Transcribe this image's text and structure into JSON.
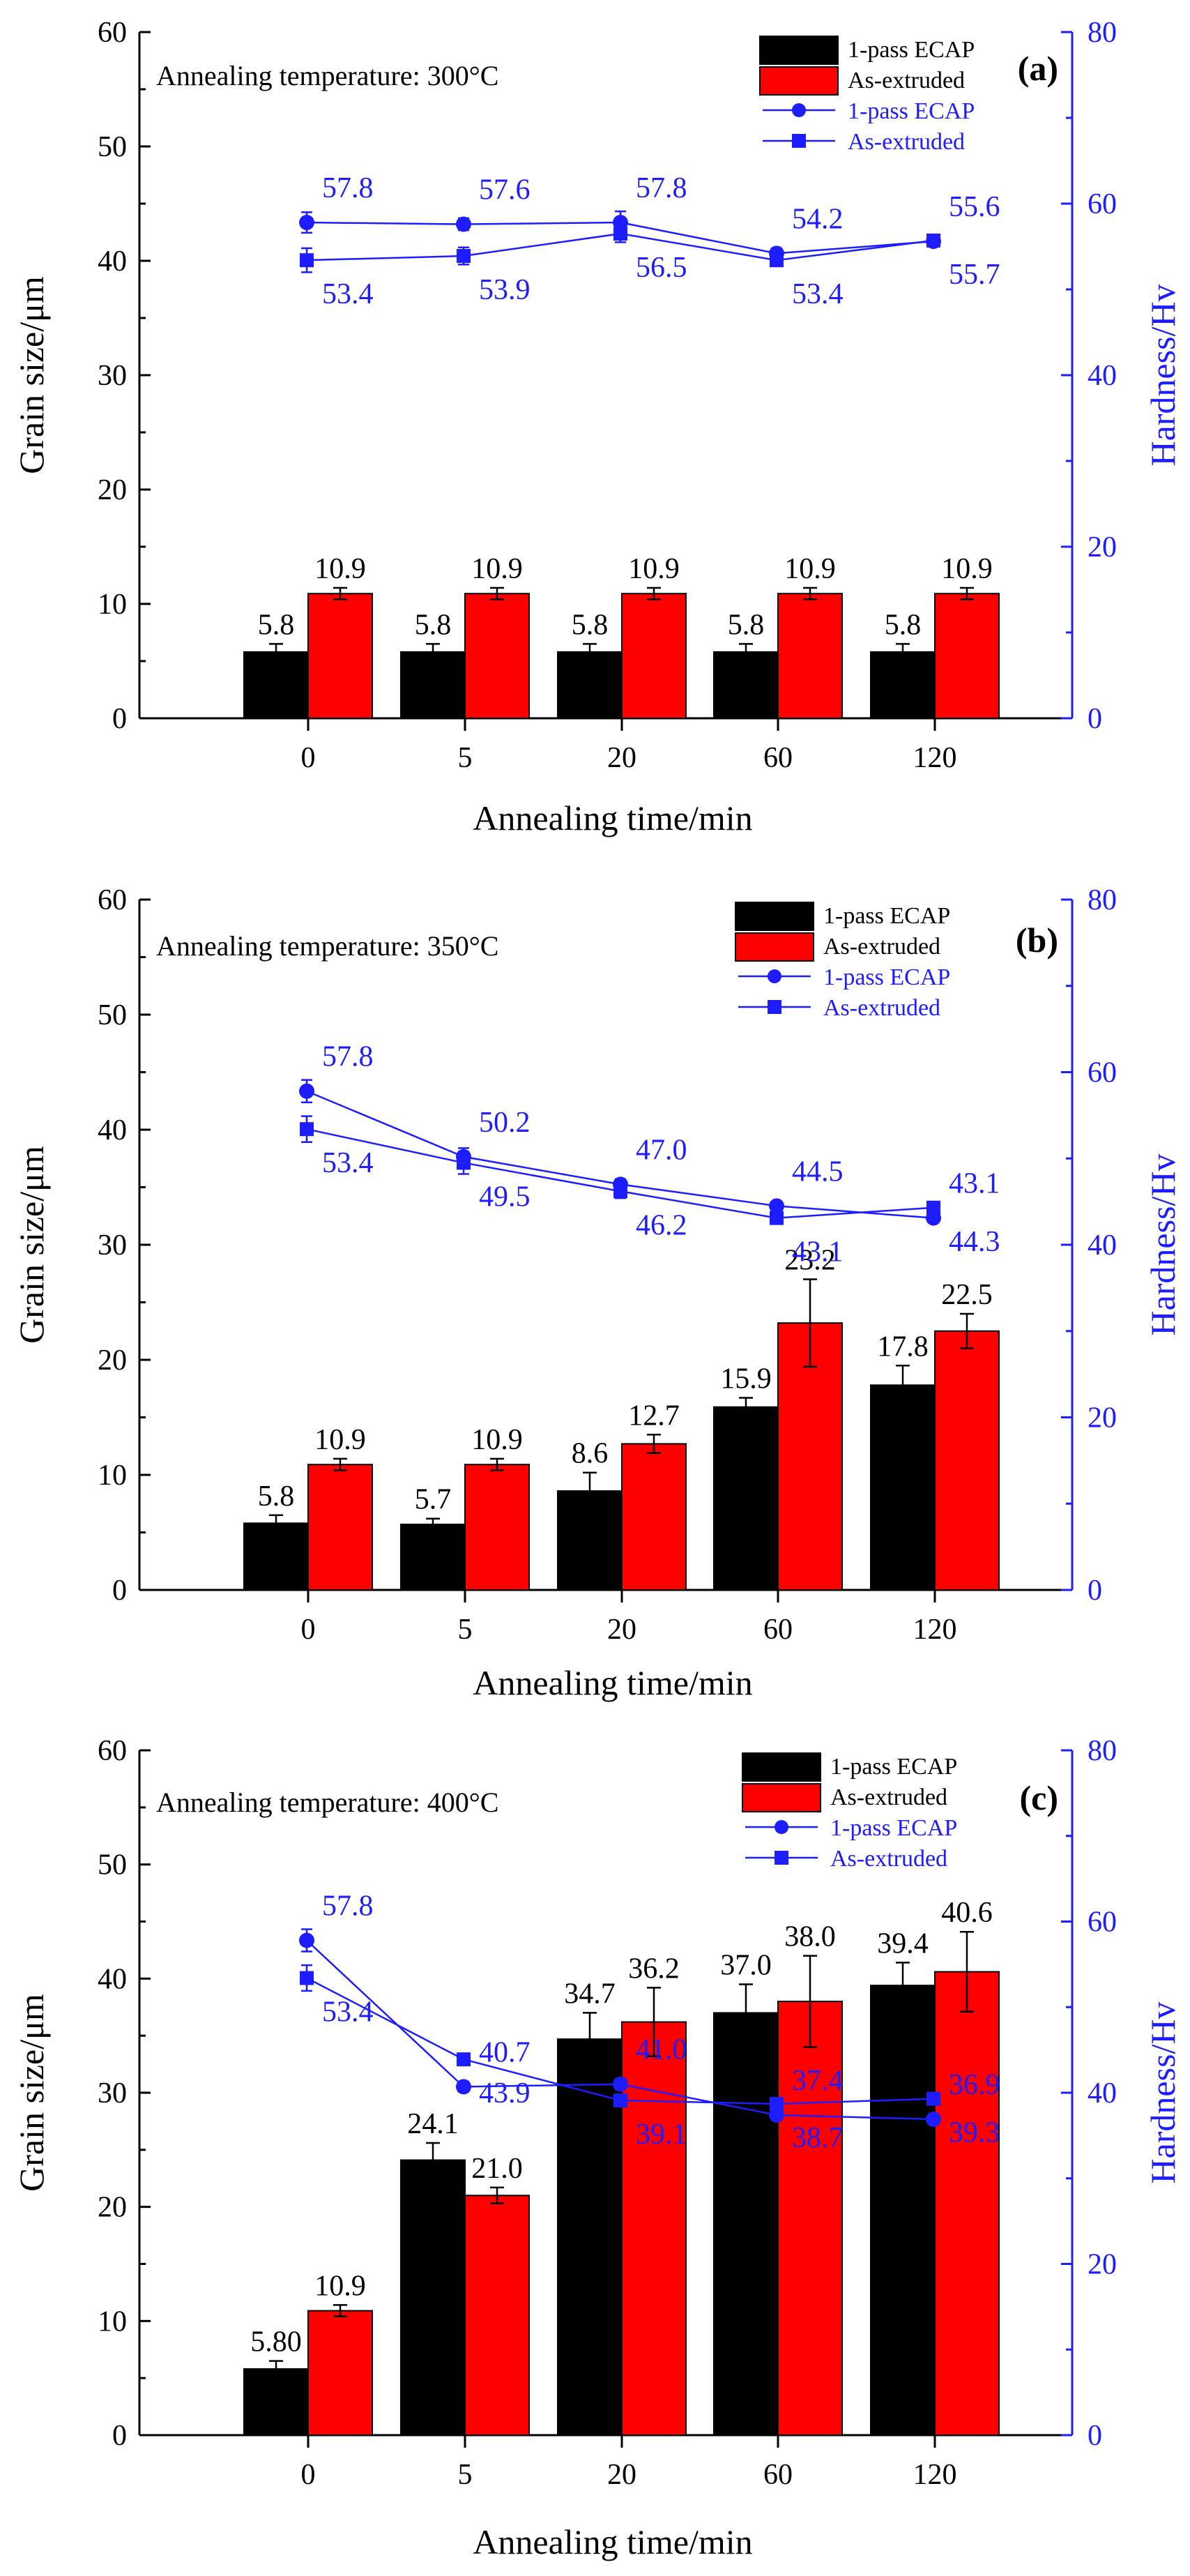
{
  "chart_data": [
    {
      "type": "bar",
      "panel": "(a)",
      "annotation": "Annealing temperature: 300°C",
      "categories": [
        "0",
        "5",
        "20",
        "60",
        "120"
      ],
      "xlabel": "Annealing time/min",
      "ylabel": "Grain size/μm",
      "y2label": "Hardness/Hv",
      "ylim": [
        0,
        60
      ],
      "y2lim": [
        0,
        80
      ],
      "yticks": [
        0,
        10,
        20,
        30,
        40,
        50,
        60
      ],
      "y2ticks": [
        0,
        20,
        40,
        60,
        80
      ],
      "series": [
        {
          "name": "1-pass ECAP",
          "kind": "bar",
          "color": "#000000",
          "values": [
            5.8,
            5.8,
            5.8,
            5.8,
            5.8
          ],
          "errors": [
            0.7,
            0.7,
            0.7,
            0.7,
            0.7
          ],
          "labels": [
            "5.8",
            "5.8",
            "5.8",
            "5.8",
            "5.8"
          ]
        },
        {
          "name": "As-extruded",
          "kind": "bar",
          "color": "#ff0000",
          "values": [
            10.9,
            10.9,
            10.9,
            10.9,
            10.9
          ],
          "errors": [
            0.5,
            0.5,
            0.5,
            0.5,
            0.5
          ],
          "labels": [
            "10.9",
            "10.9",
            "10.9",
            "10.9",
            "10.9"
          ]
        },
        {
          "name": "1-pass ECAP",
          "kind": "line",
          "marker": "circle",
          "color": "#1d1dff",
          "values": [
            57.8,
            57.6,
            57.8,
            54.2,
            55.6
          ],
          "errors": [
            1.2,
            0.7,
            1.3,
            0.6,
            0.6
          ],
          "labels": [
            "57.8",
            "57.6",
            "57.8",
            "54.2",
            "55.6"
          ]
        },
        {
          "name": "As-extruded",
          "kind": "line",
          "marker": "square",
          "color": "#1d1dff",
          "values": [
            53.4,
            53.9,
            56.5,
            53.4,
            55.7
          ],
          "errors": [
            1.4,
            1.0,
            1.0,
            0.6,
            0.5
          ],
          "labels": [
            "53.4",
            "53.9",
            "56.5",
            "53.4",
            "55.7"
          ]
        }
      ],
      "legend": [
        "1-pass ECAP",
        "As-extruded",
        "1-pass ECAP",
        "As-extruded"
      ]
    },
    {
      "type": "bar",
      "panel": "(b)",
      "annotation": "Annealing temperature: 350°C",
      "categories": [
        "0",
        "5",
        "20",
        "60",
        "120"
      ],
      "xlabel": "Annealing time/min",
      "ylabel": "Grain size/μm",
      "y2label": "Hardness/Hv",
      "ylim": [
        0,
        60
      ],
      "y2lim": [
        0,
        80
      ],
      "yticks": [
        0,
        10,
        20,
        30,
        40,
        50,
        60
      ],
      "y2ticks": [
        0,
        20,
        40,
        60,
        80
      ],
      "series": [
        {
          "name": "1-pass ECAP",
          "kind": "bar",
          "color": "#000000",
          "values": [
            5.8,
            5.7,
            8.6,
            15.9,
            17.8
          ],
          "errors": [
            0.7,
            0.5,
            1.6,
            0.8,
            1.7
          ],
          "labels": [
            "5.8",
            "5.7",
            "8.6",
            "15.9",
            "17.8"
          ]
        },
        {
          "name": "As-extruded",
          "kind": "bar",
          "color": "#ff0000",
          "values": [
            10.9,
            10.9,
            12.7,
            23.2,
            22.5
          ],
          "errors": [
            0.5,
            0.5,
            0.8,
            3.8,
            1.5
          ],
          "labels": [
            "10.9",
            "10.9",
            "12.7",
            "23.2",
            "22.5"
          ]
        },
        {
          "name": "1-pass ECAP",
          "kind": "line",
          "marker": "circle",
          "color": "#1d1dff",
          "values": [
            57.8,
            50.2,
            47.0,
            44.5,
            43.1
          ],
          "errors": [
            1.3,
            1.0,
            0.6,
            0.5,
            0.5
          ],
          "labels": [
            "57.8",
            "50.2",
            "47.0",
            "44.5",
            "43.1"
          ]
        },
        {
          "name": "As-extruded",
          "kind": "line",
          "marker": "square",
          "color": "#1d1dff",
          "values": [
            53.4,
            49.5,
            46.2,
            43.1,
            44.3
          ],
          "errors": [
            1.5,
            1.3,
            0.8,
            0.5,
            0.5
          ],
          "labels": [
            "53.4",
            "49.5",
            "46.2",
            "43.1",
            "44.3"
          ]
        }
      ],
      "legend": [
        "1-pass ECAP",
        "As-extruded",
        "1-pass ECAP",
        "As-extruded"
      ]
    },
    {
      "type": "bar",
      "panel": "(c)",
      "annotation": "Annealing temperature: 400°C",
      "categories": [
        "0",
        "5",
        "20",
        "60",
        "120"
      ],
      "xlabel": "Annealing time/min",
      "ylabel": "Grain size/μm",
      "y2label": "Hardness/Hv",
      "ylim": [
        0,
        60
      ],
      "y2lim": [
        0,
        80
      ],
      "yticks": [
        0,
        10,
        20,
        30,
        40,
        50,
        60
      ],
      "y2ticks": [
        0,
        20,
        40,
        60,
        80
      ],
      "series": [
        {
          "name": "1-pass ECAP",
          "kind": "bar",
          "color": "#000000",
          "values": [
            5.8,
            24.1,
            34.7,
            37.0,
            39.4
          ],
          "errors": [
            0.7,
            1.5,
            2.3,
            2.5,
            2.0
          ],
          "labels": [
            "5.80",
            "24.1",
            "34.7",
            "37.0",
            "39.4"
          ]
        },
        {
          "name": "As-extruded",
          "kind": "bar",
          "color": "#ff0000",
          "values": [
            10.9,
            21.0,
            36.2,
            38.0,
            40.6
          ],
          "errors": [
            0.5,
            0.7,
            3.0,
            4.0,
            3.5
          ],
          "labels": [
            "10.9",
            "21.0",
            "36.2",
            "38.0",
            "40.6"
          ]
        },
        {
          "name": "1-pass ECAP",
          "kind": "line",
          "marker": "circle",
          "color": "#1d1dff",
          "values": [
            57.8,
            40.7,
            41.0,
            37.4,
            36.9
          ],
          "errors": [
            1.3,
            0.6,
            0.6,
            0.5,
            0.5
          ],
          "labels": [
            "57.8",
            "40.7",
            "41.0",
            "37.4",
            "36.9"
          ]
        },
        {
          "name": "As-extruded",
          "kind": "line",
          "marker": "square",
          "color": "#1d1dff",
          "values": [
            53.4,
            43.9,
            39.1,
            38.7,
            39.3
          ],
          "errors": [
            1.5,
            0.5,
            0.6,
            0.5,
            0.5
          ],
          "labels": [
            "53.4",
            "43.9",
            "39.1",
            "38.7",
            "39.3"
          ]
        }
      ],
      "legend": [
        "1-pass ECAP",
        "As-extruded",
        "1-pass ECAP",
        "As-extruded"
      ]
    }
  ]
}
